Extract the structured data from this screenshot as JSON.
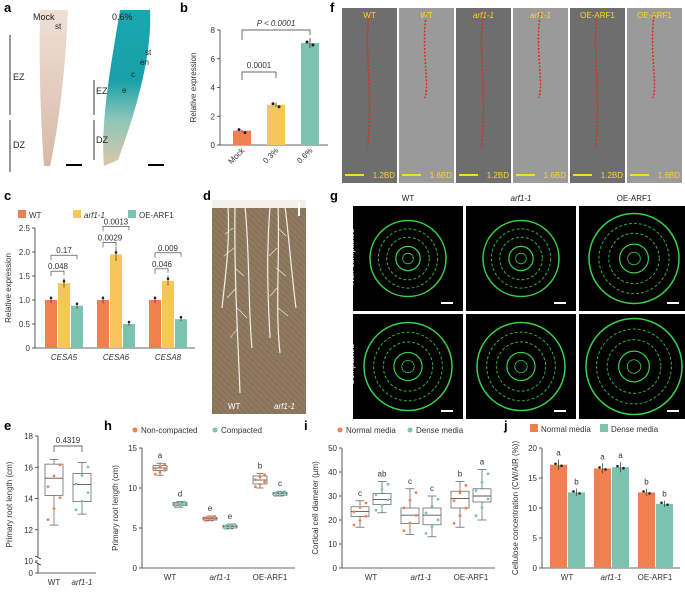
{
  "panel_labels": {
    "a": "a",
    "b": "b",
    "c": "c",
    "d": "d",
    "e": "e",
    "f": "f",
    "g": "g",
    "h": "h",
    "i": "i",
    "j": "j"
  },
  "panel_a": {
    "left_title": "Mock",
    "right_title": "0.6%",
    "st": "st",
    "st2": "st",
    "en": "en",
    "c": "c",
    "e": "e",
    "ez": "EZ",
    "dz": "DZ",
    "ez2": "EZ",
    "dz2": "DZ"
  },
  "panel_f": {
    "labels": [
      "WT",
      "WT",
      "arf1-1",
      "arf1-1",
      "OE-ARF1",
      "OE-ARF1"
    ],
    "scales": [
      "1.2BD",
      "1.6BD",
      "1.2BD",
      "1.6BD",
      "1.2BD",
      "1.6BD"
    ]
  },
  "panel_g": {
    "cols": [
      "WT",
      "arf1-1",
      "OE-ARF1"
    ],
    "rows": [
      "Non-compacted",
      "Compacted"
    ]
  },
  "panel_d": {
    "wt": "WT",
    "mut": "arf1-1"
  },
  "chart_data": [
    {
      "id": "b",
      "type": "bar",
      "categories": [
        "Mock",
        "0.3%",
        "0.6%"
      ],
      "values": [
        1.0,
        2.8,
        7.1
      ],
      "colors": [
        "#f08050",
        "#f7c65a",
        "#7cc2b0"
      ],
      "ylabel": "Relative expression",
      "ylim": [
        0,
        8
      ],
      "yticks": [
        0,
        2,
        4,
        6,
        8
      ],
      "annotations": [
        "P < 0.0001",
        "0.0001"
      ]
    },
    {
      "id": "c",
      "type": "bar",
      "categories": [
        "CESA5",
        "CESA6",
        "CESA8"
      ],
      "series": [
        {
          "name": "WT",
          "values": [
            1.0,
            1.0,
            1.0
          ],
          "color": "#f08050"
        },
        {
          "name": "arf1-1",
          "values": [
            1.35,
            1.95,
            1.4
          ],
          "color": "#f7c65a"
        },
        {
          "name": "OE-ARF1",
          "values": [
            0.88,
            0.5,
            0.6
          ],
          "color": "#7cc2b0"
        }
      ],
      "ylabel": "Relative expression",
      "ylim": [
        0,
        2.5
      ],
      "yticks": [
        0,
        0.5,
        1.0,
        1.5,
        2.0,
        2.5
      ],
      "pvalues": [
        [
          "0.17",
          "0.048"
        ],
        [
          "0.0013",
          "0.0029"
        ],
        [
          "0.009",
          "0.046"
        ]
      ]
    },
    {
      "id": "e",
      "type": "box",
      "categories": [
        "WT",
        "arf1-1"
      ],
      "ylabel": "Primary root length (cm)",
      "ylim": [
        0,
        18
      ],
      "yticks": [
        0,
        10,
        12,
        14,
        16,
        18
      ],
      "boxes": [
        {
          "q1": 14.2,
          "median": 15.3,
          "q3": 16.2,
          "min": 12.3,
          "max": 16.5
        },
        {
          "q1": 13.8,
          "median": 14.9,
          "q3": 15.6,
          "min": 13.0,
          "max": 16.3
        }
      ],
      "annotation": "0.4319"
    },
    {
      "id": "h",
      "type": "box",
      "categories": [
        "WT",
        "arf1-1",
        "OE-ARF1"
      ],
      "legend": [
        "Non-compacted",
        "Compacted"
      ],
      "colors": [
        "#f08050",
        "#7cc2b0"
      ],
      "ylabel": "Primary root length (cm)",
      "ylim": [
        0,
        15
      ],
      "yticks": [
        0,
        5,
        10,
        15
      ],
      "boxes": [
        {
          "q1": 12.2,
          "median": 12.5,
          "q3": 12.8,
          "min": 11.6,
          "max": 13.1,
          "letter": "a"
        },
        {
          "q1": 7.8,
          "median": 8.0,
          "q3": 8.2,
          "min": 7.6,
          "max": 8.3,
          "letter": "d"
        },
        {
          "q1": 6.0,
          "median": 6.2,
          "q3": 6.35,
          "min": 5.9,
          "max": 6.5,
          "letter": "e"
        },
        {
          "q1": 5.0,
          "median": 5.2,
          "q3": 5.35,
          "min": 4.9,
          "max": 5.5,
          "letter": "e"
        },
        {
          "q1": 10.5,
          "median": 11.0,
          "q3": 11.5,
          "min": 10.0,
          "max": 11.8,
          "letter": "b"
        },
        {
          "q1": 9.1,
          "median": 9.3,
          "q3": 9.45,
          "min": 9.0,
          "max": 9.6,
          "letter": "c"
        }
      ]
    },
    {
      "id": "i",
      "type": "box",
      "categories": [
        "WT",
        "arf1-1",
        "OE-ARF1"
      ],
      "legend": [
        "Normal media",
        "Dense media"
      ],
      "colors": [
        "#f08050",
        "#7cc2b0"
      ],
      "ylabel": "Cortical cell diameter (µm)",
      "ylim": [
        0,
        50
      ],
      "yticks": [
        0,
        10,
        20,
        30,
        40,
        50
      ],
      "boxes": [
        {
          "q1": 21.5,
          "median": 23.5,
          "q3": 25.5,
          "min": 17,
          "max": 28,
          "letter": "c"
        },
        {
          "q1": 26.5,
          "median": 28.5,
          "q3": 31.0,
          "min": 23,
          "max": 36,
          "letter": "ab"
        },
        {
          "q1": 18.5,
          "median": 22.0,
          "q3": 25.0,
          "min": 14,
          "max": 33,
          "letter": "c"
        },
        {
          "q1": 18.0,
          "median": 22.0,
          "q3": 25.0,
          "min": 13,
          "max": 30,
          "letter": "c"
        },
        {
          "q1": 25.0,
          "median": 29.0,
          "q3": 32.0,
          "min": 17,
          "max": 36,
          "letter": "b"
        },
        {
          "q1": 27.5,
          "median": 30.0,
          "q3": 33.0,
          "min": 20,
          "max": 41,
          "letter": "a"
        }
      ]
    },
    {
      "id": "j",
      "type": "bar",
      "categories": [
        "WT",
        "arf1-1",
        "OE-ARF1"
      ],
      "legend": [
        "Normal media",
        "Dense media"
      ],
      "colors": [
        "#f08050",
        "#7cc2b0"
      ],
      "ylabel": "Cellulose concentration (CW/AIR (%))",
      "ylim": [
        0,
        20
      ],
      "yticks": [
        0,
        5,
        10,
        15,
        20
      ],
      "series": [
        {
          "name": "Normal media",
          "values": [
            17.2,
            16.6,
            12.6
          ],
          "letters": [
            "a",
            "a",
            "b"
          ]
        },
        {
          "name": "Dense media",
          "values": [
            12.6,
            16.8,
            10.7
          ],
          "letters": [
            "b",
            "a",
            "b"
          ]
        }
      ]
    }
  ]
}
